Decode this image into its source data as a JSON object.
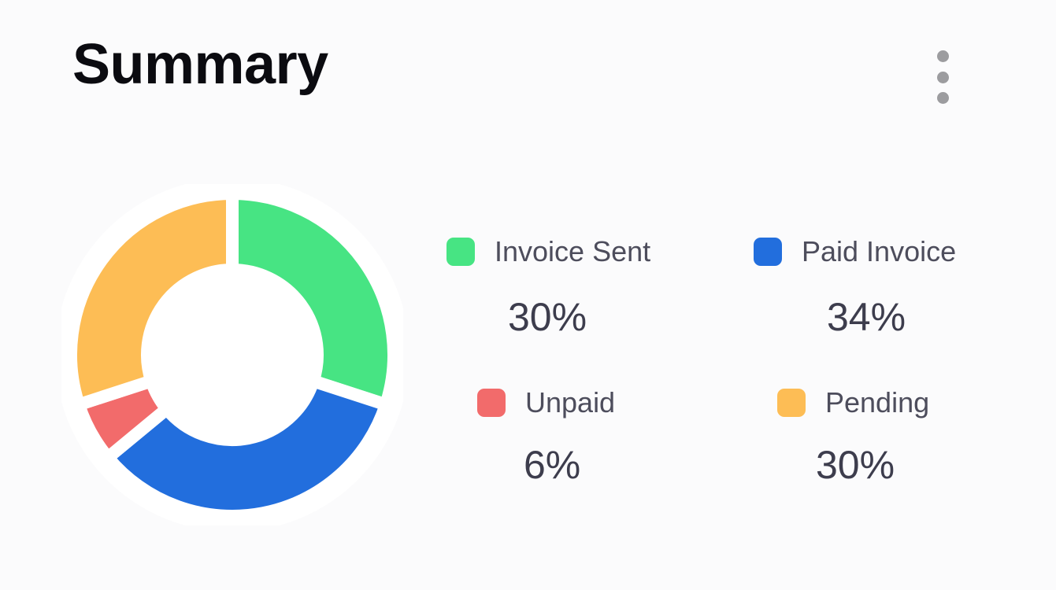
{
  "header": {
    "title": "Summary",
    "menu_icon": "more-vertical-icon"
  },
  "chart_data": {
    "type": "pie",
    "categories": [
      "Invoice Sent",
      "Paid Invoice",
      "Unpaid",
      "Pending"
    ],
    "values": [
      30,
      34,
      6,
      30
    ],
    "value_labels": [
      "30%",
      "34%",
      "6%",
      "30%"
    ],
    "colors": [
      "#47e483",
      "#226edd",
      "#f26b6b",
      "#fdbd55"
    ]
  },
  "legend": [
    {
      "label": "Invoice Sent",
      "value": "30%",
      "color": "#47e483"
    },
    {
      "label": "Paid Invoice",
      "value": "34%",
      "color": "#226edd"
    },
    {
      "label": "Unpaid",
      "value": "6%",
      "color": "#f26b6b"
    },
    {
      "label": "Pending",
      "value": "30%",
      "color": "#fdbd55"
    }
  ]
}
